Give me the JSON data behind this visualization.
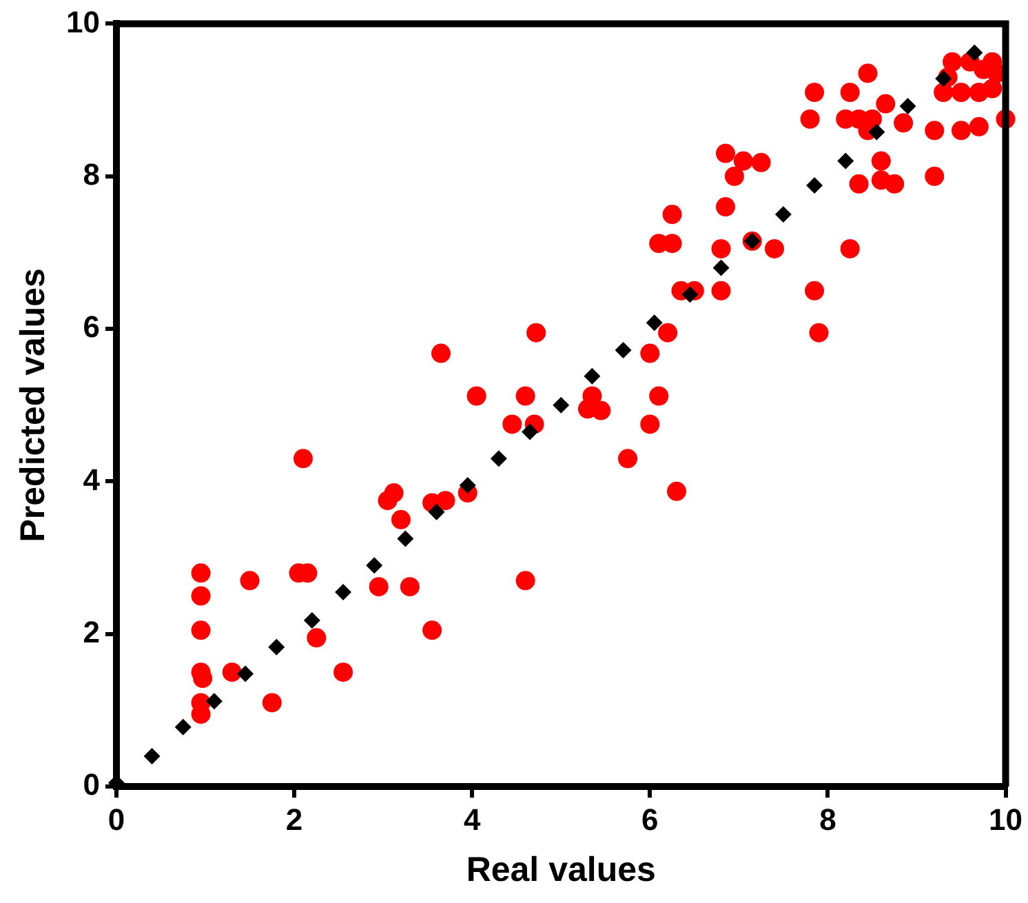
{
  "chart_data": {
    "type": "scatter",
    "xlabel": "Real values",
    "ylabel": "Predicted values",
    "xlim": [
      0,
      10
    ],
    "ylim": [
      0,
      10
    ],
    "xticks": [
      0,
      2,
      4,
      6,
      8,
      10
    ],
    "yticks": [
      0,
      2,
      4,
      6,
      8,
      10
    ],
    "grid": false,
    "legend": false,
    "series": [
      {
        "marker": "circle",
        "color": "#ff0000",
        "x": [
          0.95,
          0.95,
          0.95,
          0.95,
          0.97,
          0.95,
          0.95,
          1.3,
          1.5,
          1.75,
          2.05,
          2.15,
          2.1,
          2.25,
          2.55,
          2.95,
          3.05,
          3.12,
          3.2,
          3.3,
          3.55,
          3.55,
          3.65,
          3.7,
          3.95,
          4.05,
          4.45,
          4.6,
          4.6,
          4.7,
          4.72,
          5.3,
          5.35,
          5.45,
          5.75,
          6.0,
          6.0,
          6.1,
          6.1,
          6.2,
          6.25,
          6.25,
          6.3,
          6.35,
          6.5,
          6.8,
          6.8,
          6.85,
          6.85,
          6.95,
          7.05,
          7.15,
          7.25,
          7.4,
          7.8,
          7.85,
          7.85,
          7.9,
          8.2,
          8.25,
          8.25,
          8.35,
          8.35,
          8.45,
          8.45,
          8.5,
          8.6,
          8.6,
          8.65,
          8.75,
          8.85,
          9.2,
          9.2,
          9.3,
          9.35,
          9.4,
          9.5,
          9.5,
          9.6,
          9.7,
          9.7,
          9.75,
          9.85,
          9.85,
          9.9,
          10.0
        ],
        "values": [
          2.8,
          2.5,
          2.05,
          1.5,
          1.42,
          1.1,
          0.95,
          1.5,
          2.7,
          1.1,
          2.8,
          2.8,
          4.3,
          1.95,
          1.5,
          2.62,
          3.75,
          3.85,
          3.5,
          2.62,
          2.05,
          3.72,
          5.68,
          3.75,
          3.85,
          5.12,
          4.75,
          5.12,
          2.7,
          4.75,
          5.95,
          4.95,
          5.12,
          4.93,
          4.3,
          5.68,
          4.75,
          5.12,
          7.12,
          5.95,
          7.5,
          7.12,
          3.87,
          6.5,
          6.5,
          6.5,
          7.05,
          7.6,
          8.3,
          8.0,
          8.2,
          7.15,
          8.18,
          7.05,
          8.75,
          6.5,
          9.1,
          5.95,
          8.75,
          9.1,
          7.05,
          7.9,
          8.75,
          8.6,
          9.35,
          8.75,
          7.95,
          8.2,
          8.95,
          7.9,
          8.7,
          8.0,
          8.6,
          9.1,
          9.3,
          9.5,
          9.1,
          8.6,
          9.5,
          9.1,
          8.65,
          9.4,
          9.5,
          9.15,
          9.35,
          8.75
        ]
      },
      {
        "marker": "diamond",
        "color": "#000000",
        "x": [
          0,
          0.4,
          0.75,
          1.1,
          1.45,
          1.8,
          2.2,
          2.55,
          2.9,
          3.25,
          3.6,
          3.95,
          4.3,
          4.65,
          5.0,
          5.35,
          5.7,
          6.05,
          6.45,
          6.8,
          7.15,
          7.5,
          7.85,
          8.2,
          8.55,
          8.9,
          9.3,
          9.65
        ],
        "values": [
          0.05,
          0.4,
          0.78,
          1.12,
          1.48,
          1.83,
          2.18,
          2.55,
          2.9,
          3.25,
          3.6,
          3.95,
          4.3,
          4.65,
          5.0,
          5.38,
          5.72,
          6.08,
          6.45,
          6.8,
          7.15,
          7.5,
          7.88,
          8.2,
          8.58,
          8.92,
          9.28,
          9.62
        ]
      }
    ]
  }
}
